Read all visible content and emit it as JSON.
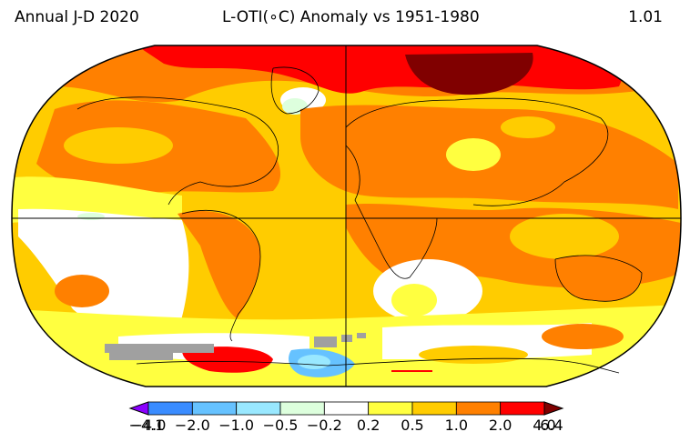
{
  "header": {
    "left_label": "Annual J-D 2020",
    "center_label": "L-OTI(∘C) Anomaly vs 1951-1980",
    "right_value": "1.01"
  },
  "map": {
    "projection": "Robinson",
    "colors": {
      "ocean_outline": "#000000",
      "no_data": "#a0a0a0"
    }
  },
  "colorbar": {
    "tick_labels": [
      "−4.1",
      "−4.0",
      "−2.0",
      "−1.0",
      "−0.5",
      "−0.2",
      "0.2",
      "0.5",
      "1.0",
      "2.0",
      "4.0",
      "6.4"
    ],
    "bins": [
      {
        "from": -4.1,
        "to": -4.0,
        "color": "#8a00ff"
      },
      {
        "from": -4.0,
        "to": -2.0,
        "color": "#3a8cff"
      },
      {
        "from": -2.0,
        "to": -1.0,
        "color": "#66c2ff"
      },
      {
        "from": -1.0,
        "to": -0.5,
        "color": "#99e8ff"
      },
      {
        "from": -0.5,
        "to": -0.2,
        "color": "#ddffdd"
      },
      {
        "from": -0.2,
        "to": 0.2,
        "color": "#ffffff"
      },
      {
        "from": 0.2,
        "to": 0.5,
        "color": "#ffff40"
      },
      {
        "from": 0.5,
        "to": 1.0,
        "color": "#ffcc00"
      },
      {
        "from": 1.0,
        "to": 2.0,
        "color": "#ff8000"
      },
      {
        "from": 2.0,
        "to": 4.0,
        "color": "#ff0000"
      },
      {
        "from": 4.0,
        "to": 6.4,
        "color": "#800000"
      }
    ]
  }
}
